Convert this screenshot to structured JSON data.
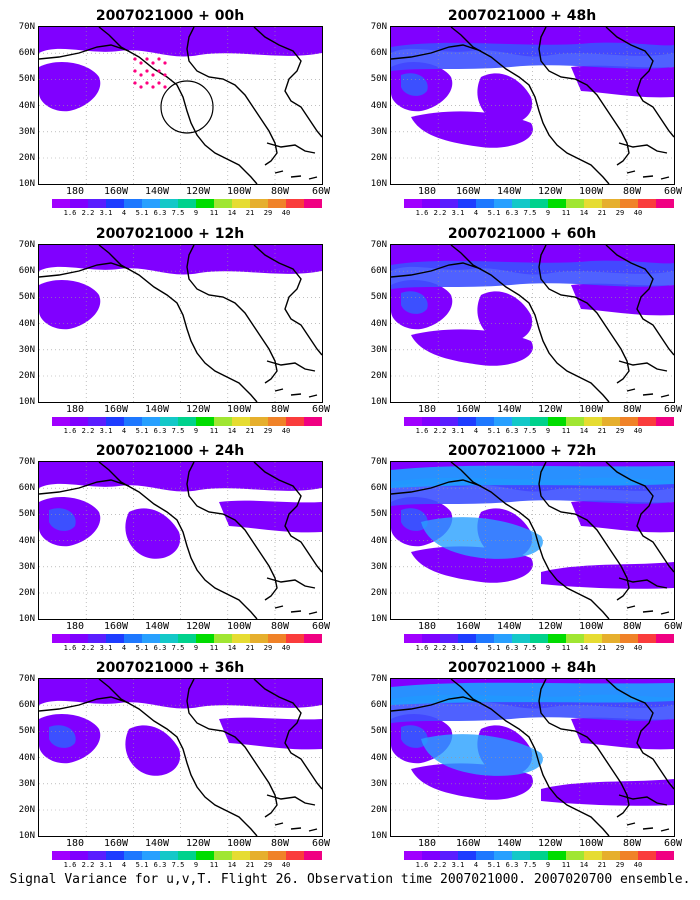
{
  "panels": [
    {
      "title": "2007021000 + 00h"
    },
    {
      "title": "2007021000 + 48h"
    },
    {
      "title": "2007021000 + 12h"
    },
    {
      "title": "2007021000 + 60h"
    },
    {
      "title": "2007021000 + 24h"
    },
    {
      "title": "2007021000 + 72h"
    },
    {
      "title": "2007021000 + 36h"
    },
    {
      "title": "2007021000 + 84h"
    }
  ],
  "lat_labels": [
    "70N",
    "60N",
    "50N",
    "40N",
    "30N",
    "20N",
    "10N"
  ],
  "lon_labels": [
    "180",
    "160W",
    "140W",
    "120W",
    "100W",
    "80W",
    "60W"
  ],
  "colorbar": {
    "labels": [
      "1.6",
      "2.2",
      "3.1",
      "4",
      "5.1",
      "6.3",
      "7.5",
      "9",
      "11",
      "14",
      "21",
      "29",
      "40"
    ],
    "colors": [
      "#a000ff",
      "#7f00ff",
      "#5a1eff",
      "#1e3cff",
      "#1e78ff",
      "#28a0ff",
      "#14c8c8",
      "#00d28c",
      "#00dc00",
      "#a0e632",
      "#e6dc32",
      "#e6af2d",
      "#f08228",
      "#fa3c3c",
      "#f00082"
    ]
  },
  "caption": "Signal Variance for u,v,T. Flight 26. Observation time 2007021000. 2007020700 ensemble."
}
